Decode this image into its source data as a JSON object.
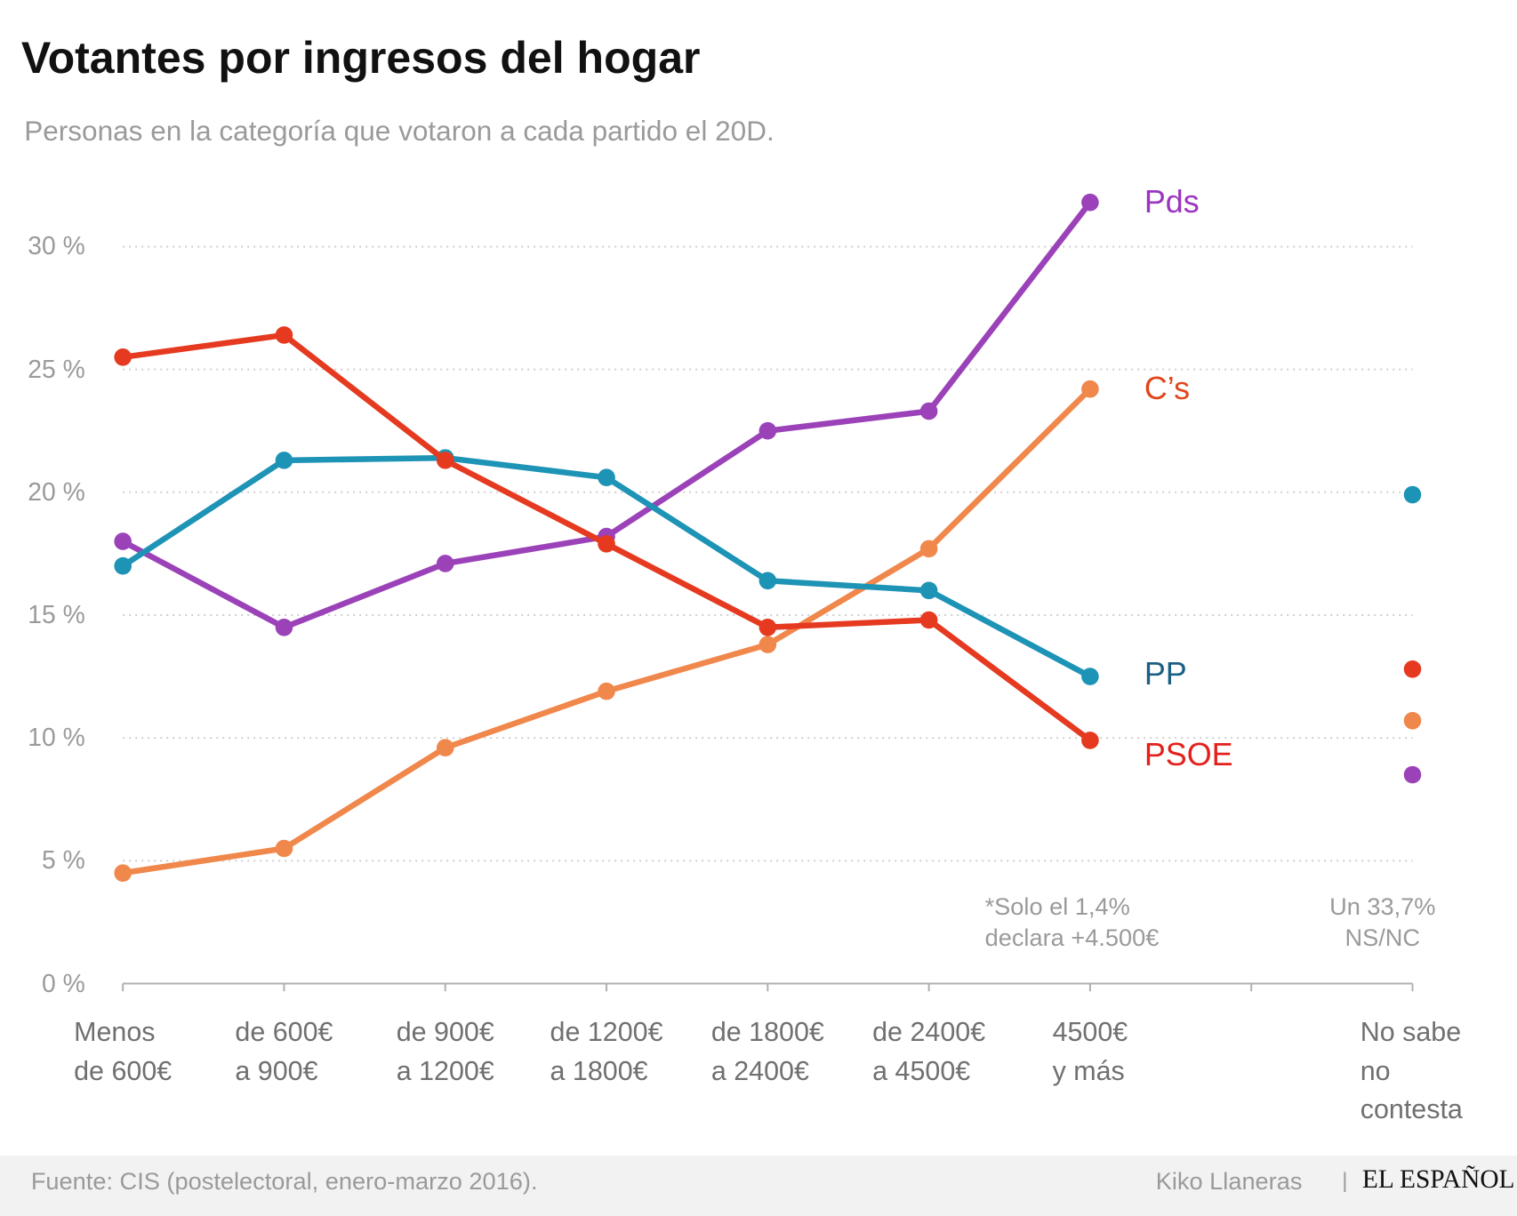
{
  "chart_data": {
    "type": "line",
    "title": "Votantes por ingresos del hogar",
    "subtitle": "Personas en la categoría que votaron a cada partido el 20D.",
    "categories": [
      "Menos\nde 600€",
      "de 600€\na 900€",
      "de 900€\na 1200€",
      "de 1200€\na 1800€",
      "de 1800€\na 2400€",
      "de 2400€\na 4500€",
      "4500€\ny más",
      null,
      "No sabe\nno contesta"
    ],
    "series": [
      {
        "name": "Pds",
        "color": "#9b42b8",
        "label_color": "#9b35c0",
        "values": [
          18.0,
          14.5,
          17.1,
          18.2,
          22.5,
          23.3,
          31.8,
          null,
          8.5
        ]
      },
      {
        "name": "C’s",
        "color": "#f0874b",
        "label_color": "#e0461c",
        "values": [
          4.5,
          5.5,
          9.6,
          11.9,
          13.8,
          17.7,
          24.2,
          null,
          10.7
        ]
      },
      {
        "name": "PP",
        "color": "#1d93b6",
        "label_color": "#1b5f84",
        "values": [
          17.0,
          21.3,
          21.4,
          20.6,
          16.4,
          16.0,
          12.5,
          null,
          19.9
        ]
      },
      {
        "name": "PSOE",
        "color": "#e53a20",
        "label_color": "#e3201b",
        "values": [
          25.5,
          26.4,
          21.3,
          17.9,
          14.5,
          14.8,
          9.9,
          null,
          12.8
        ]
      }
    ],
    "ylim": [
      0,
      35
    ],
    "yticks": [
      {
        "value": 0,
        "label": "0 %"
      },
      {
        "value": 5,
        "label": "5 %"
      },
      {
        "value": 10,
        "label": "10 %"
      },
      {
        "value": 15,
        "label": "15 %"
      },
      {
        "value": 20,
        "label": "20 %"
      },
      {
        "value": 25,
        "label": "25 %"
      },
      {
        "value": 30,
        "label": "30 %"
      }
    ],
    "grid": true,
    "annotations": [
      "*Solo el 1,4%\ndeclara +4.500€",
      "Un 33,7%\nNS/NC"
    ],
    "source": "Fuente: CIS (postelectoral, enero-marzo 2016).",
    "author": "Kiko Llaneras",
    "separator": "|",
    "publisher": "EL ESPAÑOL"
  }
}
